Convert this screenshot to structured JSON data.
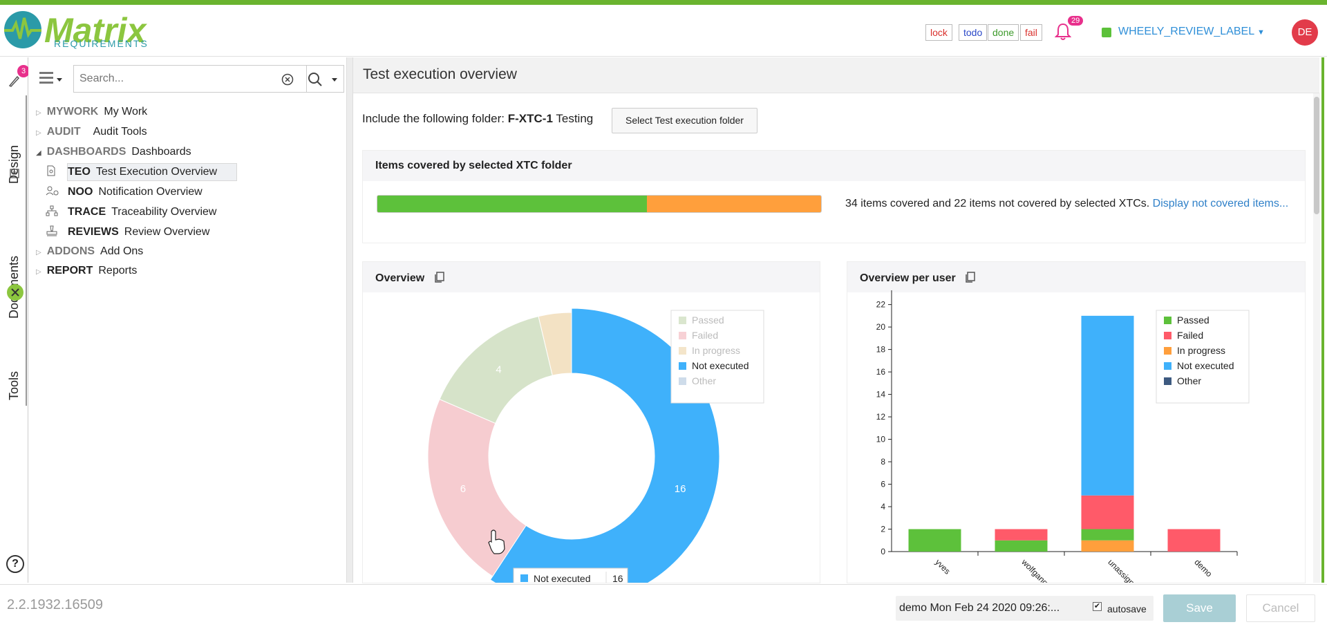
{
  "header": {
    "logo_main": "Matrix",
    "logo_sub": "REQUIREMENTS",
    "tags": [
      "lock",
      "todo",
      "done",
      "fail"
    ],
    "notification_count": "29",
    "label_dropdown": "WHEELY_REVIEW_LABEL",
    "avatar_initials": "DE",
    "accent_color": "#6ab42f"
  },
  "left_tabs": {
    "design": "Design",
    "design_badge": "3",
    "documents": "Documents",
    "tools": "Tools",
    "help": "?"
  },
  "tree": {
    "search_placeholder": "Search...",
    "items": [
      {
        "key": "MYWORK",
        "label": "My Work"
      },
      {
        "key": "AUDIT",
        "label": "Audit Tools"
      },
      {
        "key": "DASHBOARDS",
        "label": "Dashboards"
      },
      {
        "key": "TEO",
        "label": "Test Execution Overview"
      },
      {
        "key": "NOO",
        "label": "Notification Overview"
      },
      {
        "key": "TRACE",
        "label": "Traceability Overview"
      },
      {
        "key": "REVIEWS",
        "label": "Review Overview"
      },
      {
        "key": "ADDONS",
        "label": "Add Ons"
      },
      {
        "key": "REPORT",
        "label": "Reports"
      }
    ]
  },
  "main": {
    "title": "Test execution overview",
    "folder_prefix": "Include the following folder:",
    "folder_id": "F-XTC-1",
    "folder_name": "Testing",
    "select_button": "Select Test execution folder",
    "coverage_title": "Items covered by selected XTC folder",
    "coverage_covered": 34,
    "coverage_not_covered": 22,
    "coverage_text": "34 items covered and 22 items not covered by selected XTCs.",
    "coverage_link": "Display not covered items...",
    "overview_title": "Overview",
    "per_user_title": "Overview per user",
    "tooltip_label": "Not executed",
    "tooltip_value": "16"
  },
  "chart_data": [
    {
      "type": "pie",
      "title": "Overview",
      "legend": [
        "Passed",
        "Failed",
        "In progress",
        "Not executed",
        "Other"
      ],
      "slices": [
        {
          "name": "Not executed",
          "value": 16,
          "color": "#3fb1fb",
          "active": true
        },
        {
          "name": "Failed",
          "value": 6,
          "color": "#f6ccd0",
          "active": false
        },
        {
          "name": "Passed",
          "value": 4,
          "color": "#d6e3c9",
          "active": false
        },
        {
          "name": "In progress",
          "value": 1,
          "color": "#f3e2c4",
          "active": false
        }
      ],
      "legend_placement": "top-right"
    },
    {
      "type": "bar",
      "title": "Overview per user",
      "categories": [
        "yves",
        "wolfgang",
        "unassigned",
        "demo"
      ],
      "series": [
        {
          "name": "Passed",
          "color": "#5dc13b",
          "values": [
            2,
            1,
            1,
            0
          ]
        },
        {
          "name": "Failed",
          "color": "#ff5a69",
          "values": [
            0,
            1,
            3,
            2
          ]
        },
        {
          "name": "In progress",
          "color": "#ff9f3c",
          "values": [
            0,
            0,
            1,
            0
          ]
        },
        {
          "name": "Not executed",
          "color": "#3fb1fb",
          "values": [
            0,
            0,
            16,
            0
          ]
        },
        {
          "name": "Other",
          "color": "#3d5a80",
          "values": [
            0,
            0,
            0,
            0
          ]
        }
      ],
      "stacked": true,
      "yticks": [
        "0",
        "2",
        "4",
        "6",
        "8",
        "10",
        "12",
        "14",
        "16",
        "18",
        "20",
        "22"
      ],
      "ylim": [
        0,
        23
      ],
      "legend_placement": "top-right"
    }
  ],
  "footer": {
    "version": "2.2.1932.16509",
    "save_info": "demo Mon Feb 24 2020 09:26:...",
    "autosave_label": "autosave",
    "save_button": "Save",
    "cancel_button": "Cancel"
  }
}
